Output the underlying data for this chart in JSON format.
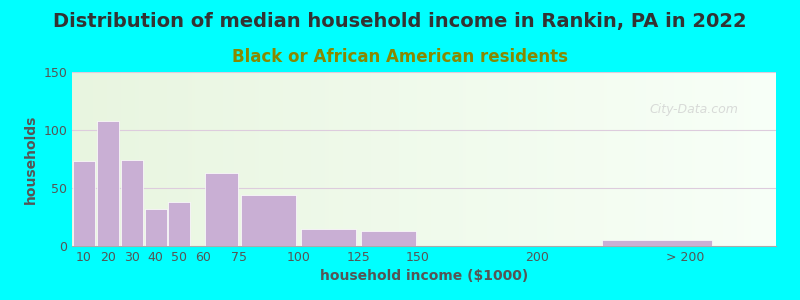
{
  "title": "Distribution of median household income in Rankin, PA in 2022",
  "subtitle": "Black or African American residents",
  "xlabel": "household income ($1000)",
  "ylabel": "households",
  "bar_heights": [
    73,
    108,
    74,
    32,
    38,
    0,
    63,
    44,
    15,
    13,
    0,
    5
  ],
  "bar_color": "#c9afd4",
  "ylim": [
    0,
    150
  ],
  "yticks": [
    0,
    50,
    100,
    150
  ],
  "outer_bg": "#00ffff",
  "title_fontsize": 14,
  "subtitle_fontsize": 12,
  "axis_label_fontsize": 10,
  "tick_fontsize": 9,
  "title_color": "#333333",
  "subtitle_color": "#888800",
  "watermark": "City-Data.com",
  "grid_color": "#ddccdd",
  "bar_widths": [
    10,
    10,
    10,
    10,
    10,
    15,
    15,
    25,
    25,
    25,
    50,
    50
  ],
  "bar_lefts": [
    5,
    15,
    25,
    35,
    45,
    55,
    60,
    75,
    100,
    125,
    150,
    225
  ],
  "xtick_positions": [
    10,
    20,
    30,
    40,
    50,
    60,
    75,
    100,
    125,
    150,
    200,
    262
  ],
  "xtick_labels": [
    "10",
    "20",
    "30",
    "40",
    "50",
    "60",
    "75",
    "100",
    "125",
    "150",
    "200",
    "> 200"
  ],
  "xlim": [
    5,
    300
  ]
}
